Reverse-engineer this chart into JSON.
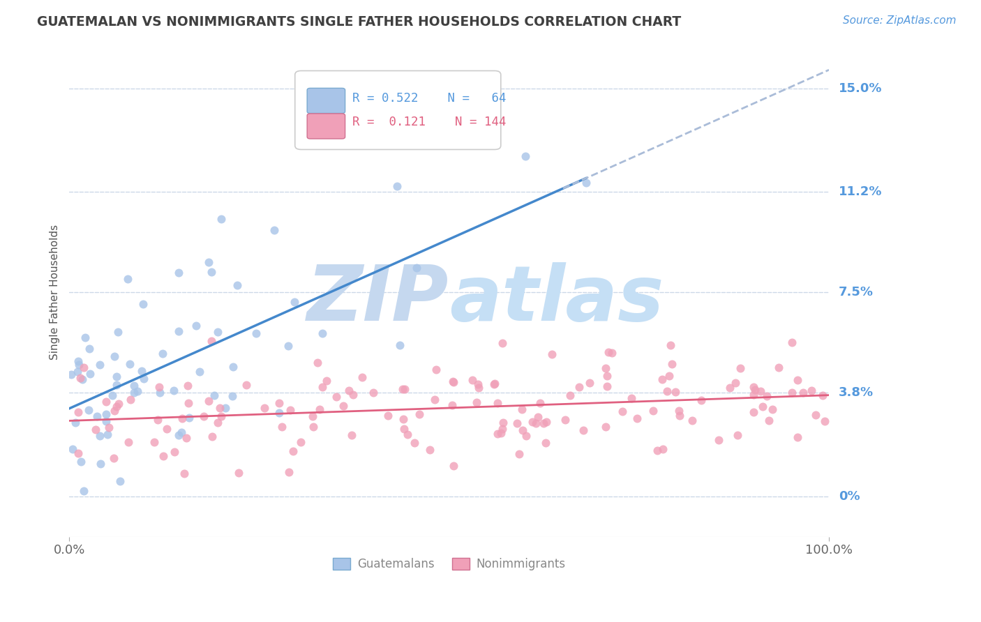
{
  "title": "GUATEMALAN VS NONIMMIGRANTS SINGLE FATHER HOUSEHOLDS CORRELATION CHART",
  "source_text": "Source: ZipAtlas.com",
  "ylabel": "Single Father Households",
  "ytick_labels": [
    "0%",
    "3.8%",
    "7.5%",
    "11.2%",
    "15.0%"
  ],
  "ytick_values": [
    0.0,
    3.8,
    7.5,
    11.2,
    15.0
  ],
  "xtick_labels": [
    "0.0%",
    "100.0%"
  ],
  "xlim": [
    0.0,
    100.0
  ],
  "ylim": [
    -1.5,
    16.5
  ],
  "guatemalan_R": 0.522,
  "guatemalan_N": 64,
  "nonimmigrant_R": 0.121,
  "nonimmigrant_N": 144,
  "guatemalan_color": "#a8c4e8",
  "nonimmigrant_color": "#f0a0b8",
  "regression_blue_color": "#4488cc",
  "regression_pink_color": "#e06080",
  "dashed_line_color": "#aabcd8",
  "background_color": "#ffffff",
  "grid_color": "#ccd8e8",
  "title_color": "#404040",
  "source_color": "#5599dd",
  "legend_text_blue": "#5599dd",
  "legend_text_pink": "#e06080",
  "right_label_color": "#5599dd",
  "watermark_zip_color": "#c5d8ef",
  "watermark_atlas_color": "#c5dff5",
  "scatter_size": 75,
  "scatter_alpha": 0.8,
  "bottom_legend_color": "#888888",
  "legend_sq_blue_edge": "#7aaad0",
  "legend_sq_pink_edge": "#d07090"
}
